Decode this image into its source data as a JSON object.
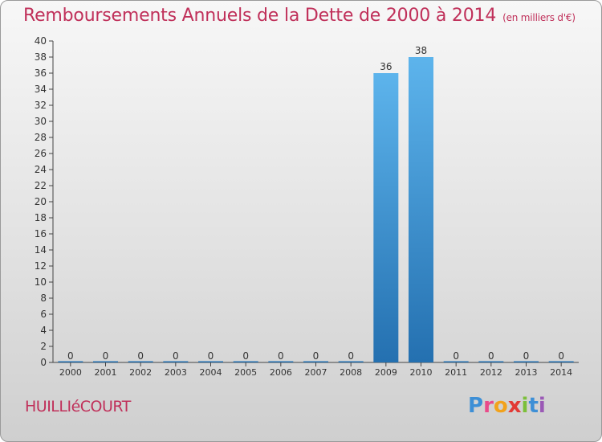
{
  "header": {
    "title": "Remboursements Annuels de la Dette de 2000 à 2014",
    "unit": "(en milliers d'€)"
  },
  "footer": {
    "town": "HUILLIéCOURT",
    "logo_letters": [
      "P",
      "r",
      "o",
      "x",
      "i",
      "t",
      "i"
    ],
    "logo_colors": [
      "#3d8fd6",
      "#e94b8a",
      "#f2a21b",
      "#e23a35",
      "#7cbf3a",
      "#3d8fd6",
      "#9b59b6"
    ]
  },
  "colors": {
    "bar_light": "#5db4ec",
    "bar_dark": "#2470b0",
    "text": "#c0305a",
    "axis": "#444444"
  },
  "chart_data": {
    "type": "bar",
    "title": "Remboursements Annuels de la Dette de 2000 à 2014",
    "categories": [
      "2000",
      "2001",
      "2002",
      "2003",
      "2004",
      "2005",
      "2006",
      "2007",
      "2008",
      "2009",
      "2010",
      "2011",
      "2012",
      "2013",
      "2014"
    ],
    "values": [
      0,
      0,
      0,
      0,
      0,
      0,
      0,
      0,
      0,
      36,
      38,
      0,
      0,
      0,
      0
    ],
    "data_labels": [
      "0",
      "0",
      "0",
      "0",
      "0",
      "0",
      "0",
      "0",
      "0",
      "36",
      "38",
      "0",
      "0",
      "0",
      "0"
    ],
    "yticks": [
      0,
      2,
      4,
      6,
      8,
      10,
      12,
      14,
      16,
      18,
      20,
      22,
      24,
      26,
      28,
      30,
      32,
      34,
      36,
      38,
      40
    ],
    "ylim": [
      0,
      40
    ],
    "grid": false,
    "legend": "none"
  }
}
